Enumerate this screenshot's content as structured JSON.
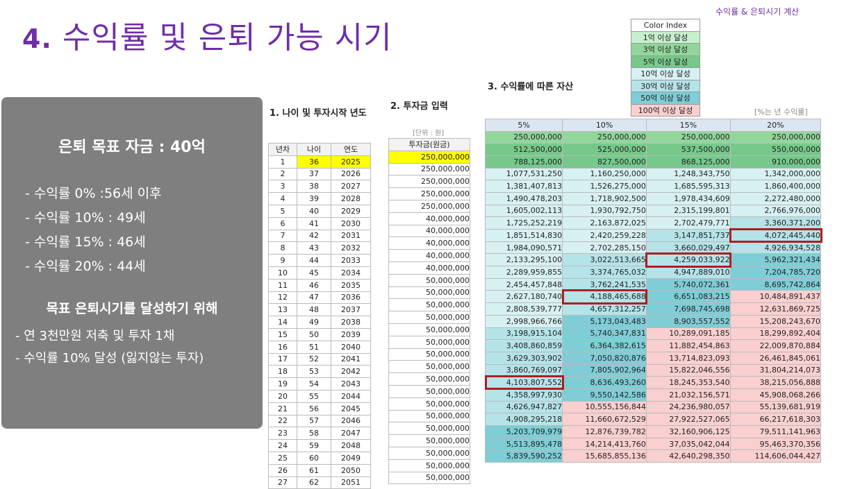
{
  "corner_label": "수익률 & 은퇴시기 계산",
  "title_num": "4.",
  "title_text": "수익률 및 은퇴 가능 시기",
  "left_box": {
    "goal": "은퇴 목표 자금 : 40억",
    "rates": [
      "- 수익률    0% :56세 이후",
      "- 수익률 10% : 49세",
      "- 수익률 15% : 46세",
      "- 수익률 20% : 44세"
    ],
    "sub_title": "목표 은퇴시기를 달성하기 위해",
    "requirements": [
      "- 연 3천만원 저축 및 투자 1채",
      "- 수익률 10% 달성 (잃지않는 투자)"
    ]
  },
  "section1": {
    "title": "1. 나이 및 투자시작 년도",
    "headers": [
      "년차",
      "나이",
      "연도"
    ],
    "rows": [
      [
        "1",
        "36",
        "2025"
      ],
      [
        "2",
        "37",
        "2026"
      ],
      [
        "3",
        "38",
        "2027"
      ],
      [
        "4",
        "39",
        "2028"
      ],
      [
        "5",
        "40",
        "2029"
      ],
      [
        "6",
        "41",
        "2030"
      ],
      [
        "7",
        "42",
        "2031"
      ],
      [
        "8",
        "43",
        "2032"
      ],
      [
        "9",
        "44",
        "2033"
      ],
      [
        "10",
        "45",
        "2034"
      ],
      [
        "11",
        "46",
        "2035"
      ],
      [
        "12",
        "47",
        "2036"
      ],
      [
        "13",
        "48",
        "2037"
      ],
      [
        "14",
        "49",
        "2038"
      ],
      [
        "15",
        "50",
        "2039"
      ],
      [
        "16",
        "51",
        "2040"
      ],
      [
        "17",
        "52",
        "2041"
      ],
      [
        "18",
        "53",
        "2042"
      ],
      [
        "19",
        "54",
        "2043"
      ],
      [
        "20",
        "55",
        "2044"
      ],
      [
        "21",
        "56",
        "2045"
      ],
      [
        "22",
        "57",
        "2046"
      ],
      [
        "23",
        "58",
        "2047"
      ],
      [
        "24",
        "59",
        "2048"
      ],
      [
        "25",
        "60",
        "2049"
      ],
      [
        "26",
        "61",
        "2050"
      ],
      [
        "27",
        "62",
        "2051"
      ]
    ]
  },
  "section2": {
    "title": "2. 투자금 입력",
    "unit": "[단위 : 원]",
    "header": "투자금(원금)",
    "values": [
      "250,000,000",
      "250,000,000",
      "250,000,000",
      "250,000,000",
      "250,000,000",
      "40,000,000",
      "40,000,000",
      "40,000,000",
      "40,000,000",
      "40,000,000",
      "50,000,000",
      "50,000,000",
      "50,000,000",
      "50,000,000",
      "50,000,000",
      "50,000,000",
      "50,000,000",
      "50,000,000",
      "50,000,000",
      "50,000,000",
      "50,000,000",
      "50,000,000",
      "50,000,000",
      "50,000,000",
      "50,000,000",
      "50,000,000",
      "50,000,000"
    ]
  },
  "section3": {
    "title": "3. 수익률에 따른 자산",
    "note": "[%는 년 수익률]",
    "headers": [
      "5%",
      "10%",
      "15%",
      "20%"
    ],
    "rows": [
      [
        "250,000,000",
        "250,000,000",
        "250,000,000",
        "250,000,000"
      ],
      [
        "512,500,000",
        "525,000,000",
        "537,500,000",
        "550,000,000"
      ],
      [
        "788,125,000",
        "827,500,000",
        "868,125,000",
        "910,000,000"
      ],
      [
        "1,077,531,250",
        "1,160,250,000",
        "1,248,343,750",
        "1,342,000,000"
      ],
      [
        "1,381,407,813",
        "1,526,275,000",
        "1,685,595,313",
        "1,860,400,000"
      ],
      [
        "1,490,478,203",
        "1,718,902,500",
        "1,978,434,609",
        "2,272,480,000"
      ],
      [
        "1,605,002,113",
        "1,930,792,750",
        "2,315,199,801",
        "2,766,976,000"
      ],
      [
        "1,725,252,219",
        "2,163,872,025",
        "2,702,479,771",
        "3,360,371,200"
      ],
      [
        "1,851,514,830",
        "2,420,259,228",
        "3,147,851,737",
        "4,072,445,440"
      ],
      [
        "1,984,090,571",
        "2,702,285,150",
        "3,660,029,497",
        "4,926,934,528"
      ],
      [
        "2,133,295,100",
        "3,022,513,665",
        "4,259,033,922",
        "5,962,321,434"
      ],
      [
        "2,289,959,855",
        "3,374,765,032",
        "4,947,889,010",
        "7,204,785,720"
      ],
      [
        "2,454,457,848",
        "3,762,241,535",
        "5,740,072,361",
        "8,695,742,864"
      ],
      [
        "2,627,180,740",
        "4,188,465,688",
        "6,651,083,215",
        "10,484,891,437"
      ],
      [
        "2,808,539,777",
        "4,657,312,257",
        "7,698,745,698",
        "12,631,869,725"
      ],
      [
        "2,998,966,766",
        "5,173,043,483",
        "8,903,557,552",
        "15,208,243,670"
      ],
      [
        "3,198,915,104",
        "5,740,347,831",
        "10,289,091,185",
        "18,299,892,404"
      ],
      [
        "3,408,860,859",
        "6,364,382,615",
        "11,882,454,863",
        "22,009,870,884"
      ],
      [
        "3,629,303,902",
        "7,050,820,876",
        "13,714,823,093",
        "26,461,845,061"
      ],
      [
        "3,860,769,097",
        "7,805,902,964",
        "15,822,046,556",
        "31,804,214,073"
      ],
      [
        "4,103,807,552",
        "8,636,493,260",
        "18,245,353,540",
        "38,215,056,888"
      ],
      [
        "4,358,997,930",
        "9,550,142,586",
        "21,032,156,571",
        "45,908,068,266"
      ],
      [
        "4,626,947,827",
        "10,555,156,844",
        "24,236,980,057",
        "55,139,681,919"
      ],
      [
        "4,908,295,218",
        "11,660,672,529",
        "27,922,527,065",
        "66,217,618,303"
      ],
      [
        "5,203,709,979",
        "12,876,739,782",
        "32,160,906,125",
        "79,511,141,963"
      ],
      [
        "5,513,895,478",
        "14,214,413,760",
        "37,035,042,044",
        "95,463,370,356"
      ],
      [
        "5,839,590,252",
        "15,685,855,136",
        "42,640,298,350",
        "114,606,044,427"
      ]
    ]
  },
  "legend": {
    "title": "Color Index",
    "items": [
      {
        "label": "1억 이상 달성",
        "color": "#c6efce"
      },
      {
        "label": "3억 이상 달성",
        "color": "#92d69b"
      },
      {
        "label": "5억 이상 달성",
        "color": "#76c98a"
      },
      {
        "label": "10억 이상 달성",
        "color": "#d7f0f2"
      },
      {
        "label": "30억 이상 달성",
        "color": "#b4e3e8"
      },
      {
        "label": "50억 이상 달성",
        "color": "#7fcdd6"
      },
      {
        "label": "100억 이상 달성",
        "color": "#f9cfcf"
      }
    ]
  },
  "highlights": [
    {
      "row": 8,
      "col": 3
    },
    {
      "row": 10,
      "col": 2
    },
    {
      "row": 13,
      "col": 1
    },
    {
      "row": 20,
      "col": 0
    }
  ]
}
